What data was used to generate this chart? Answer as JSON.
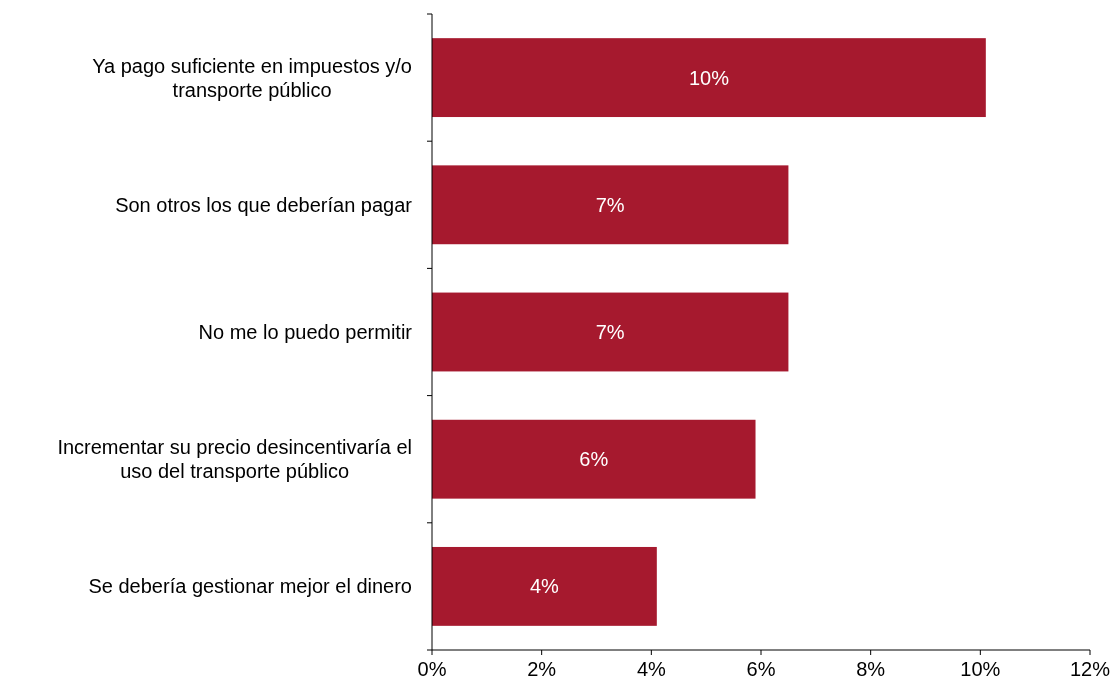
{
  "chart_data": {
    "type": "bar",
    "orientation": "horizontal",
    "categories": [
      "Ya pago suficiente en impuestos y/o transporte público",
      "Son otros los que deberían pagar",
      "No me lo puedo permitir",
      "Incrementar su precio desincentivaría el uso del transporte público",
      "Se debería gestionar mejor el dinero"
    ],
    "values": [
      10.1,
      6.5,
      6.5,
      5.9,
      4.1
    ],
    "value_labels": [
      "10%",
      "7%",
      "7%",
      "6%",
      "4%"
    ],
    "color": "#a6192e",
    "xlim": [
      0,
      12
    ],
    "xticks": [
      {
        "value": 0,
        "label": "0%"
      },
      {
        "value": 2,
        "label": "2%"
      },
      {
        "value": 4,
        "label": "4%"
      },
      {
        "value": 6,
        "label": "6%"
      },
      {
        "value": 8,
        "label": "8%"
      },
      {
        "value": 10,
        "label": "10%"
      },
      {
        "value": 12,
        "label": "12%"
      }
    ],
    "grid": false
  }
}
